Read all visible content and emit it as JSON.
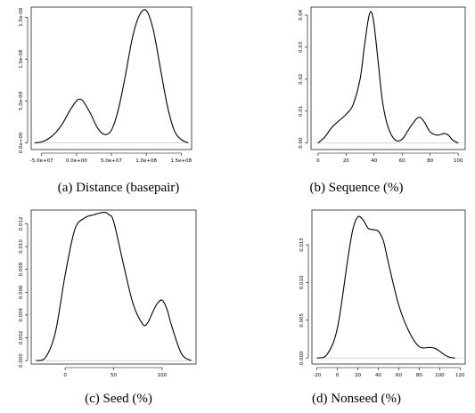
{
  "chart_data": [
    {
      "id": "a",
      "type": "line",
      "caption": "(a) Distance (basepair)",
      "xlim": [
        -65000000,
        165000000
      ],
      "ylim": [
        -8e-10,
        1.62e-08
      ],
      "x_ticks": [
        {
          "v": -50000000,
          "label": "-5.0e+07"
        },
        {
          "v": 0,
          "label": "0.0e+00"
        },
        {
          "v": 50000000,
          "label": "5.0e+07"
        },
        {
          "v": 100000000,
          "label": "1.0e+08"
        },
        {
          "v": 150000000,
          "label": "1.5e+08"
        }
      ],
      "y_ticks": [
        {
          "v": 0,
          "label": "0.0e+00"
        },
        {
          "v": 5e-09,
          "label": "5.0e-09"
        },
        {
          "v": 1e-08,
          "label": "1.0e-08"
        },
        {
          "v": 1.5e-08,
          "label": "1.5e-08"
        }
      ],
      "series": [
        {
          "x": [
            -60000000,
            -50000000,
            -40000000,
            -30000000,
            -20000000,
            -10000000,
            0,
            5000000,
            10000000,
            20000000,
            30000000,
            40000000,
            50000000,
            60000000,
            70000000,
            80000000,
            90000000,
            100000000,
            110000000,
            120000000,
            130000000,
            140000000,
            150000000,
            160000000
          ],
          "y": [
            0,
            1e-10,
            5e-10,
            1.2e-09,
            2.3e-09,
            3.8e-09,
            5e-09,
            5.2e-09,
            4.9e-09,
            3.5e-09,
            1.8e-09,
            1e-09,
            1.5e-09,
            4e-09,
            8e-09,
            1.25e-08,
            1.52e-08,
            1.58e-08,
            1.35e-08,
            9e-09,
            4.5e-09,
            1.5e-09,
            4e-10,
            0
          ]
        }
      ]
    },
    {
      "id": "b",
      "type": "line",
      "caption": "(b) Sequence (%)",
      "xlim": [
        -5,
        105
      ],
      "ylim": [
        -0.002,
        0.0425
      ],
      "x_ticks": [
        {
          "v": 0,
          "label": "0"
        },
        {
          "v": 20,
          "label": "20"
        },
        {
          "v": 40,
          "label": "40"
        },
        {
          "v": 60,
          "label": "60"
        },
        {
          "v": 80,
          "label": "80"
        },
        {
          "v": 100,
          "label": "100"
        }
      ],
      "y_ticks": [
        {
          "v": 0,
          "label": "0.00"
        },
        {
          "v": 0.01,
          "label": "0.01"
        },
        {
          "v": 0.02,
          "label": "0.02"
        },
        {
          "v": 0.03,
          "label": "0.03"
        },
        {
          "v": 0.04,
          "label": "0.04"
        }
      ],
      "series": [
        {
          "x": [
            0,
            5,
            10,
            15,
            20,
            25,
            30,
            33,
            36,
            38,
            40,
            43,
            46,
            50,
            55,
            60,
            65,
            70,
            73,
            76,
            80,
            85,
            90,
            93,
            96,
            100
          ],
          "y": [
            0,
            0.002,
            0.005,
            0.007,
            0.009,
            0.012,
            0.02,
            0.03,
            0.039,
            0.041,
            0.037,
            0.025,
            0.013,
            0.005,
            0.001,
            0.0012,
            0.0045,
            0.0075,
            0.008,
            0.0065,
            0.0035,
            0.0025,
            0.003,
            0.0025,
            0.001,
            0
          ]
        }
      ]
    },
    {
      "id": "c",
      "type": "line",
      "caption": "(c) Seed (%)",
      "xlim": [
        -35,
        135
      ],
      "ylim": [
        -0.0003,
        0.0132
      ],
      "x_ticks": [
        {
          "v": 0,
          "label": "0"
        },
        {
          "v": 50,
          "label": "50"
        },
        {
          "v": 100,
          "label": "100"
        }
      ],
      "y_ticks": [
        {
          "v": 0,
          "label": "0.000"
        },
        {
          "v": 0.002,
          "label": "0.002"
        },
        {
          "v": 0.004,
          "label": "0.004"
        },
        {
          "v": 0.006,
          "label": "0.006"
        },
        {
          "v": 0.008,
          "label": "0.008"
        },
        {
          "v": 0.01,
          "label": "0.010"
        },
        {
          "v": 0.012,
          "label": "0.012"
        }
      ],
      "series": [
        {
          "x": [
            -30,
            -20,
            -10,
            0,
            10,
            20,
            30,
            40,
            45,
            50,
            60,
            70,
            80,
            85,
            90,
            95,
            100,
            105,
            110,
            120,
            130
          ],
          "y": [
            0,
            0.0003,
            0.0025,
            0.0075,
            0.0115,
            0.0125,
            0.0128,
            0.013,
            0.0128,
            0.0122,
            0.0085,
            0.005,
            0.0032,
            0.0033,
            0.0042,
            0.005,
            0.0053,
            0.0045,
            0.003,
            0.0006,
            0
          ]
        }
      ]
    },
    {
      "id": "d",
      "type": "line",
      "caption": "(d) Nonseed (%)",
      "xlim": [
        -25,
        125
      ],
      "ylim": [
        -0.0008,
        0.0196
      ],
      "x_ticks": [
        {
          "v": -20,
          "label": "-20"
        },
        {
          "v": 0,
          "label": "0"
        },
        {
          "v": 20,
          "label": "20"
        },
        {
          "v": 40,
          "label": "40"
        },
        {
          "v": 60,
          "label": "60"
        },
        {
          "v": 80,
          "label": "80"
        },
        {
          "v": 100,
          "label": "100"
        },
        {
          "v": 120,
          "label": "120"
        }
      ],
      "y_ticks": [
        {
          "v": 0,
          "label": "0.000"
        },
        {
          "v": 0.005,
          "label": "0.005"
        },
        {
          "v": 0.01,
          "label": "0.010"
        },
        {
          "v": 0.015,
          "label": "0.015"
        }
      ],
      "series": [
        {
          "x": [
            -20,
            -10,
            0,
            10,
            15,
            20,
            25,
            30,
            35,
            40,
            45,
            50,
            60,
            70,
            80,
            90,
            95,
            100,
            105,
            110,
            115
          ],
          "y": [
            0,
            0.0005,
            0.004,
            0.013,
            0.017,
            0.0187,
            0.0183,
            0.0172,
            0.017,
            0.0168,
            0.0155,
            0.0125,
            0.007,
            0.0035,
            0.0015,
            0.0014,
            0.0013,
            0.0009,
            0.0004,
            0.0001,
            0
          ]
        }
      ]
    }
  ]
}
